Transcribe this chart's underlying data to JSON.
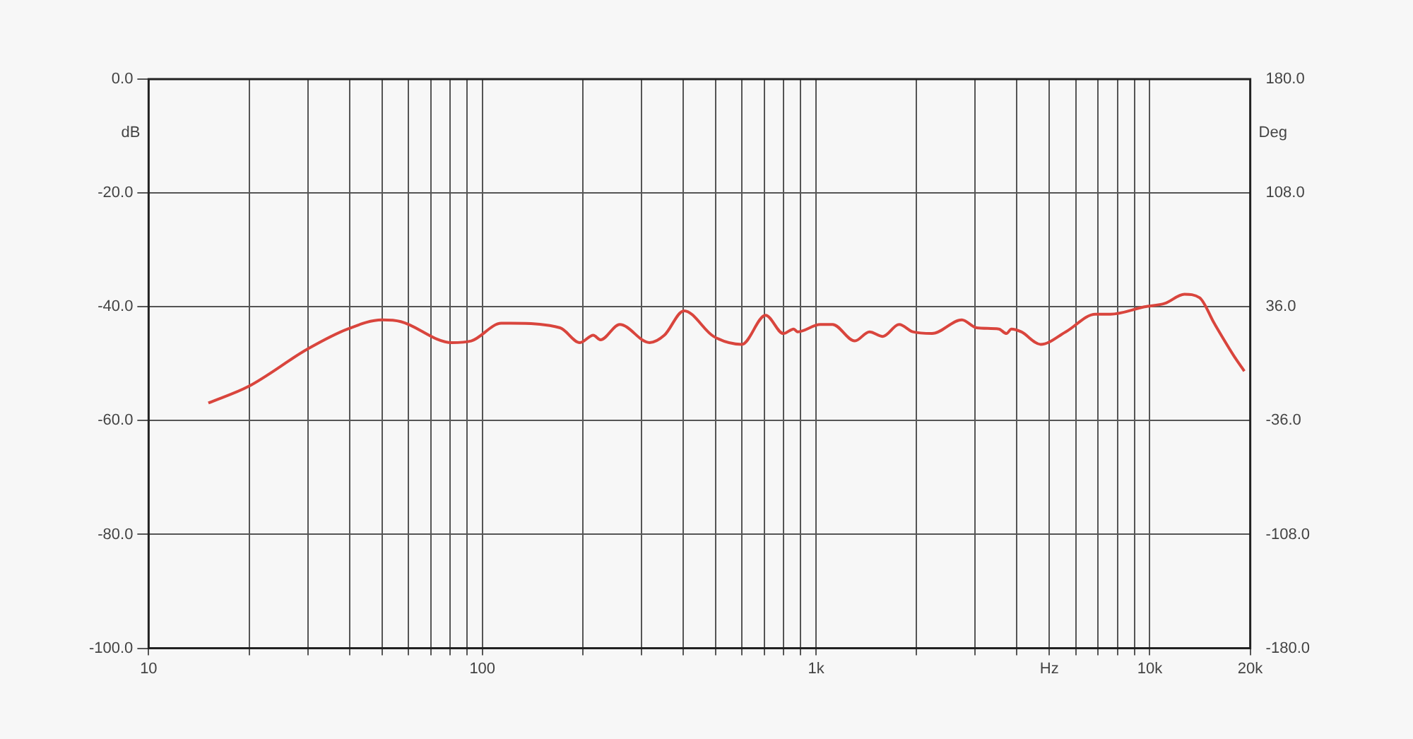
{
  "chart_data": {
    "type": "line",
    "ylabel": "dB",
    "y2label": "Deg",
    "log": "x",
    "grid": true,
    "legend": false,
    "marker": "none",
    "line_style": "solid",
    "x": [
      15.1,
      19.9,
      30,
      39.5,
      50,
      57,
      81,
      92.6,
      114,
      122,
      171,
      196,
      215,
      226,
      258,
      317,
      351,
      402,
      493,
      599,
      706,
      798,
      857,
      880,
      1030,
      1120,
      1306,
      1446,
      1585,
      1775,
      1950,
      2225,
      2735,
      3030,
      3530,
      3720,
      3850,
      4120,
      4710,
      5600,
      6870,
      7620,
      9640,
      11100,
      12700,
      14100,
      15600,
      17900,
      19200
    ],
    "series": [
      {
        "color": "#d9453d",
        "values": [
          -56.9,
          -54.0,
          -47.4,
          -43.9,
          -42.3,
          -42.6,
          -46.3,
          -46.0,
          -42.9,
          -42.9,
          -43.7,
          -46.3,
          -45.0,
          -45.8,
          -43.1,
          -46.3,
          -45.0,
          -40.7,
          -45.2,
          -46.6,
          -41.5,
          -44.7,
          -43.9,
          -44.4,
          -43.1,
          -43.1,
          -46.0,
          -44.4,
          -45.2,
          -43.1,
          -44.4,
          -44.7,
          -42.3,
          -43.7,
          -43.9,
          -44.7,
          -43.9,
          -44.4,
          -46.6,
          -44.4,
          -41.3,
          -41.3,
          -40.0,
          -39.4,
          -37.8,
          -38.4,
          -42.9,
          -48.7,
          -51.3
        ]
      }
    ],
    "xlim": [
      10,
      20000
    ],
    "xticks": [
      {
        "value": 10,
        "label": "10"
      },
      {
        "value": 20,
        "label": null
      },
      {
        "value": 30,
        "label": null
      },
      {
        "value": 40,
        "label": null
      },
      {
        "value": 50,
        "label": null
      },
      {
        "value": 60,
        "label": null
      },
      {
        "value": 70,
        "label": null
      },
      {
        "value": 80,
        "label": null
      },
      {
        "value": 90,
        "label": null
      },
      {
        "value": 100,
        "label": "100"
      },
      {
        "value": 200,
        "label": null
      },
      {
        "value": 300,
        "label": null
      },
      {
        "value": 400,
        "label": null
      },
      {
        "value": 500,
        "label": null
      },
      {
        "value": 600,
        "label": null
      },
      {
        "value": 700,
        "label": null
      },
      {
        "value": 800,
        "label": null
      },
      {
        "value": 900,
        "label": null
      },
      {
        "value": 1000,
        "label": "1k"
      },
      {
        "value": 2000,
        "label": null
      },
      {
        "value": 3000,
        "label": null
      },
      {
        "value": 4000,
        "label": null
      },
      {
        "value": 5000,
        "label": "Hz"
      },
      {
        "value": 6000,
        "label": null
      },
      {
        "value": 7000,
        "label": null
      },
      {
        "value": 8000,
        "label": null
      },
      {
        "value": 9000,
        "label": null
      },
      {
        "value": 10000,
        "label": "10k"
      },
      {
        "value": 20000,
        "label": "20k"
      }
    ],
    "ylim": [
      -100,
      0
    ],
    "yticks": [
      {
        "value": -100,
        "label": "-100.0"
      },
      {
        "value": -80,
        "label": "-80.0"
      },
      {
        "value": -60,
        "label": "-60.0"
      },
      {
        "value": -40,
        "label": "-40.0"
      },
      {
        "value": -20,
        "label": "-20.0"
      },
      {
        "value": 0,
        "label": "0.0"
      }
    ],
    "y2lim": [
      -180,
      180
    ],
    "y2ticks": [
      {
        "value": -180,
        "label": "-180.0"
      },
      {
        "value": -108,
        "label": "-108.0"
      },
      {
        "value": -36,
        "label": "-36.0"
      },
      {
        "value": 36,
        "label": "36.0"
      },
      {
        "value": 108,
        "label": "108.0"
      },
      {
        "value": 180,
        "label": "180.0"
      }
    ]
  }
}
